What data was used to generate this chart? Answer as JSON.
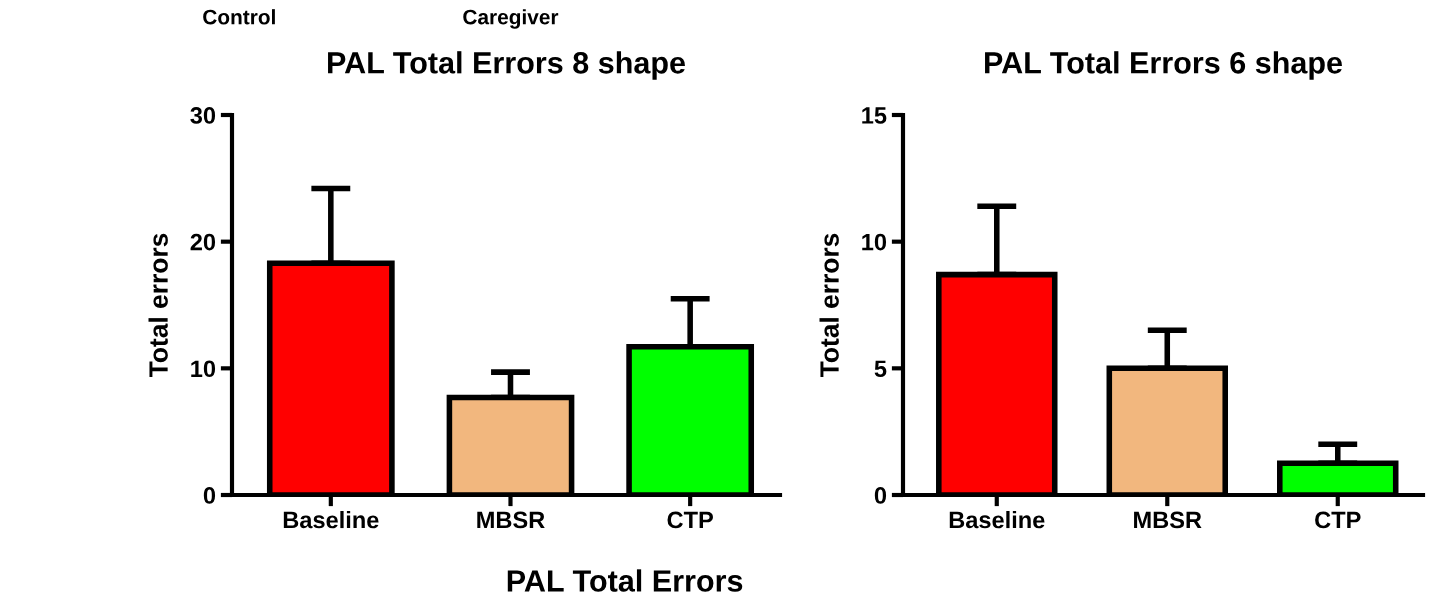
{
  "chart_data": [
    {
      "type": "bar",
      "title": "PAL Total Errors 8 shape",
      "ylabel": "Total errors",
      "categories": [
        "Baseline",
        "MBSR",
        "CTP"
      ],
      "values": [
        18.3,
        7.7,
        11.7
      ],
      "colors": [
        "#ff0000",
        "#f2b77e",
        "#00ff00"
      ],
      "errors": [
        [
          18.3,
          24.2
        ],
        [
          7.7,
          9.7
        ],
        [
          11.7,
          15.5
        ]
      ],
      "ylim": [
        0,
        30
      ],
      "yticks": [
        0,
        10,
        20,
        30
      ],
      "annotations": [
        "Control",
        "Caregiver",
        "PAL Total Errors"
      ]
    },
    {
      "type": "bar",
      "title": "PAL Total Errors 6 shape",
      "ylabel": "Total errors",
      "categories": [
        "Baseline",
        "MBSR",
        "CTP"
      ],
      "values": [
        8.7,
        5.0,
        1.25
      ],
      "colors": [
        "#ff0000",
        "#f2b77e",
        "#00ff00"
      ],
      "errors": [
        [
          8.7,
          11.4
        ],
        [
          5.0,
          6.5
        ],
        [
          1.25,
          2.0
        ]
      ],
      "ylim": [
        0,
        15
      ],
      "yticks": [
        0,
        5,
        10,
        15
      ]
    }
  ]
}
